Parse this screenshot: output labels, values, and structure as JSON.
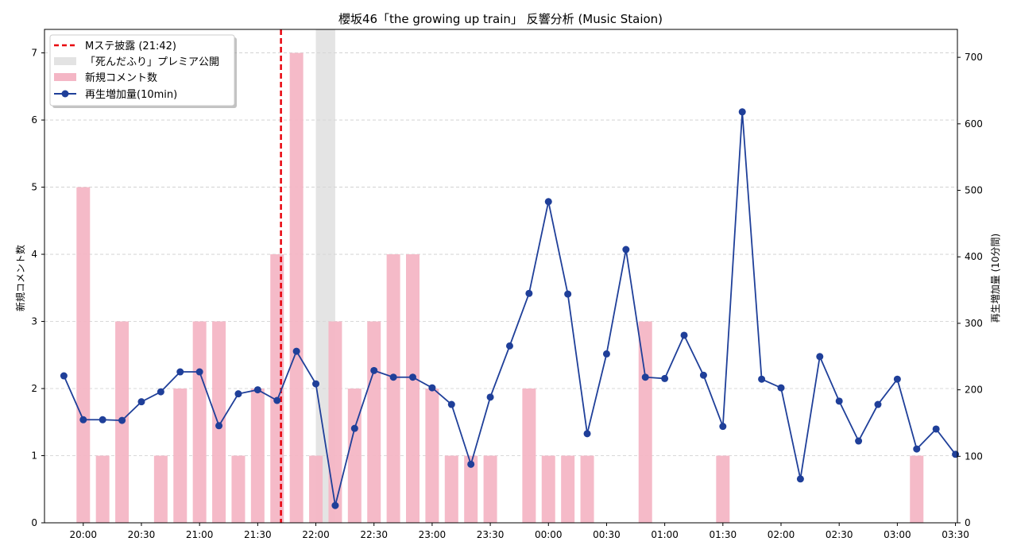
{
  "chart_data": {
    "type": "bar+line",
    "title": "櫻坂46「the growing up train」 反響分析 (Music Staion)",
    "ylabel_left": "新規コメント数",
    "ylabel_right": "再生増加量 (10分間)",
    "xlim": [
      "19:40",
      "03:31"
    ],
    "ylim_left": [
      0,
      7.35
    ],
    "ylim_right": [
      0,
      742
    ],
    "yticks_left": [
      0,
      1,
      2,
      3,
      4,
      5,
      6,
      7
    ],
    "yticks_right": [
      0,
      100,
      200,
      300,
      400,
      500,
      600,
      700
    ],
    "xticks": [
      "20:00",
      "20:30",
      "21:00",
      "21:30",
      "22:00",
      "22:30",
      "23:00",
      "23:30",
      "00:00",
      "00:30",
      "01:00",
      "01:30",
      "02:00",
      "02:30",
      "03:00",
      "03:30"
    ],
    "grid": "horizontal dashed",
    "legend_position": "top-left",
    "legend": [
      "Mステ披露 (21:42)",
      "「死んだふり」プレミア公開",
      "新規コメント数",
      "再生増加量(10min)"
    ],
    "vline": {
      "time": "21:42",
      "label": "Mステ披露 (21:42)",
      "color": "#e8000b"
    },
    "span": {
      "start": "22:00",
      "end": "22:10",
      "label": "「死んだふり」プレミア公開",
      "color": "#d9d9d9"
    },
    "bars": {
      "name": "新規コメント数",
      "color": "#f4b6c5",
      "x": [
        "20:00",
        "20:10",
        "20:20",
        "20:40",
        "20:50",
        "21:00",
        "21:10",
        "21:20",
        "21:30",
        "21:40",
        "21:50",
        "22:00",
        "22:10",
        "22:20",
        "22:30",
        "22:40",
        "22:50",
        "23:00",
        "23:10",
        "23:20",
        "23:30",
        "23:50",
        "00:00",
        "00:10",
        "00:20",
        "00:50",
        "01:30",
        "03:10"
      ],
      "values": [
        5,
        1,
        3,
        1,
        2,
        3,
        3,
        1,
        2,
        4,
        7,
        1,
        3,
        2,
        3,
        4,
        4,
        2,
        1,
        1,
        1,
        2,
        1,
        1,
        1,
        3,
        1,
        1
      ]
    },
    "line": {
      "name": "再生増加量(10min)",
      "color": "#1f3f99",
      "x": [
        "19:50",
        "20:00",
        "20:10",
        "20:20",
        "20:30",
        "20:40",
        "20:50",
        "21:00",
        "21:10",
        "21:20",
        "21:30",
        "21:40",
        "21:50",
        "22:00",
        "22:10",
        "22:20",
        "22:30",
        "22:40",
        "22:50",
        "23:00",
        "23:10",
        "23:20",
        "23:30",
        "23:40",
        "23:50",
        "00:00",
        "00:10",
        "00:20",
        "00:30",
        "00:40",
        "00:50",
        "01:00",
        "01:10",
        "01:20",
        "01:30",
        "01:40",
        "01:50",
        "02:00",
        "02:10",
        "02:20",
        "02:30",
        "02:40",
        "02:50",
        "03:00",
        "03:10",
        "03:20",
        "03:30"
      ],
      "values": [
        221,
        155,
        155,
        154,
        182,
        197,
        227,
        227,
        146,
        194,
        200,
        184,
        258,
        209,
        26,
        142,
        229,
        219,
        219,
        203,
        178,
        88,
        189,
        266,
        345,
        483,
        344,
        134,
        254,
        411,
        219,
        217,
        282,
        222,
        145,
        618,
        216,
        203,
        66,
        250,
        183,
        123,
        178,
        216,
        111,
        141,
        103
      ]
    }
  }
}
